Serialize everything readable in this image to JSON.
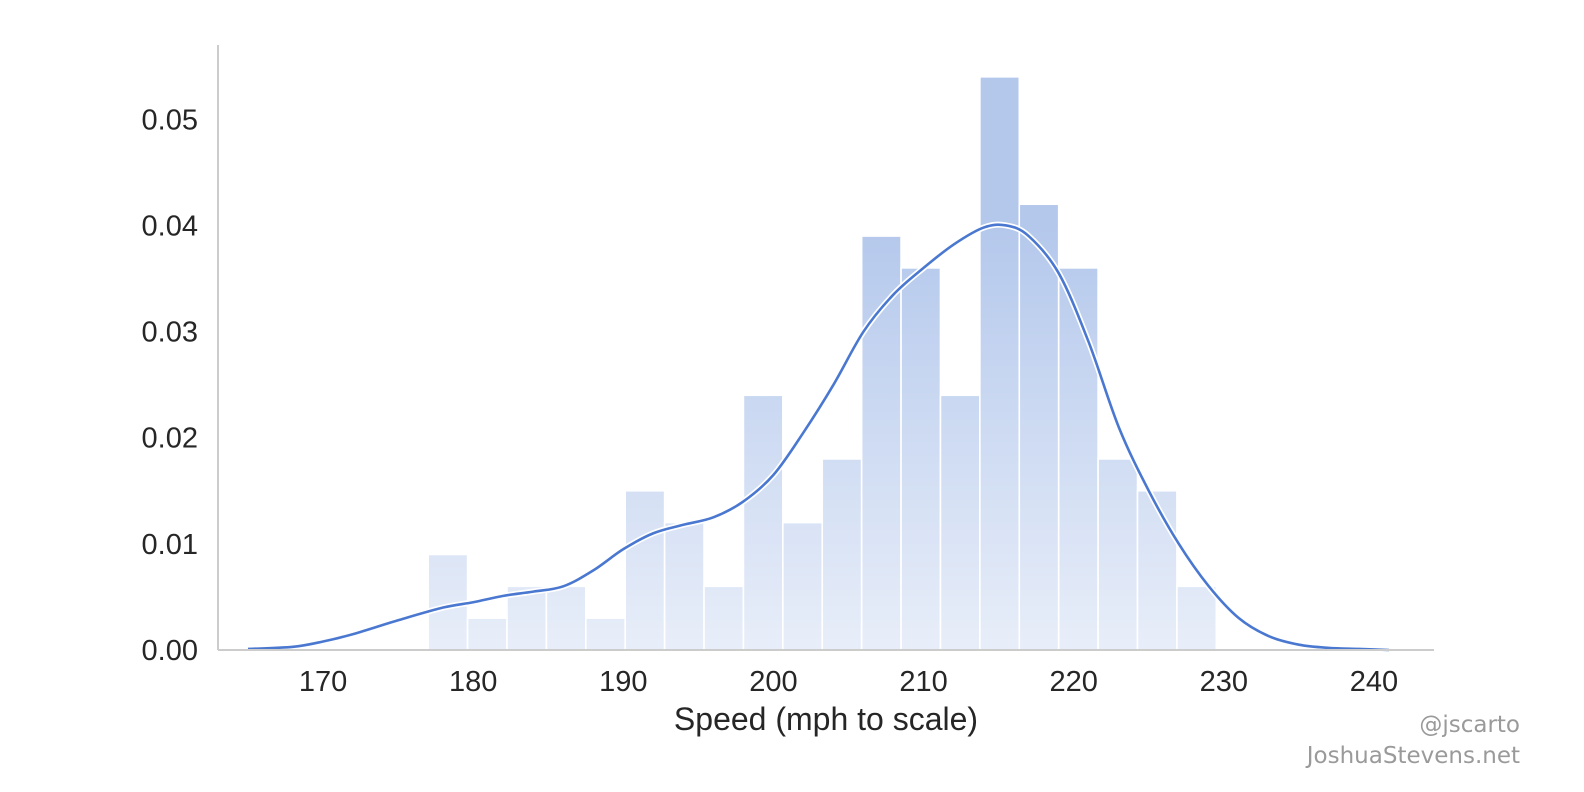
{
  "chart_data": {
    "type": "bar",
    "title": "",
    "xlabel": "Speed (mph to scale)",
    "ylabel": "",
    "xlim": [
      163,
      244
    ],
    "ylim": [
      0,
      0.057
    ],
    "xticks": [
      170,
      180,
      190,
      200,
      210,
      220,
      230,
      240
    ],
    "yticks": [
      0.0,
      0.01,
      0.02,
      0.03,
      0.04,
      0.05
    ],
    "ytick_labels": [
      "0.00",
      "0.01",
      "0.02",
      "0.03",
      "0.04",
      "0.05"
    ],
    "grid": false,
    "bins": {
      "start": 177,
      "width": 2.625,
      "values": [
        0.009,
        0.003,
        0.006,
        0.006,
        0.003,
        0.015,
        0.012,
        0.006,
        0.024,
        0.012,
        0.018,
        0.039,
        0.036,
        0.024,
        0.054,
        0.042,
        0.036,
        0.018,
        0.015,
        0.006
      ]
    },
    "kde": {
      "x": [
        165,
        168,
        170,
        172,
        175,
        178,
        180,
        182,
        184,
        186,
        188,
        190,
        192,
        194,
        196,
        198,
        200,
        202,
        204,
        206,
        208,
        210,
        212,
        214,
        215.5,
        217,
        219,
        221,
        223,
        225,
        227,
        229,
        231,
        233,
        235,
        237,
        239,
        241
      ],
      "y": [
        0.0001,
        0.0003,
        0.0008,
        0.0015,
        0.0028,
        0.004,
        0.0045,
        0.0051,
        0.0055,
        0.006,
        0.0075,
        0.0095,
        0.011,
        0.0118,
        0.0125,
        0.014,
        0.0165,
        0.0205,
        0.025,
        0.03,
        0.0335,
        0.036,
        0.0382,
        0.0398,
        0.04,
        0.039,
        0.0355,
        0.029,
        0.021,
        0.015,
        0.01,
        0.006,
        0.003,
        0.0013,
        0.0005,
        0.0002,
        0.0001,
        0.0
      ]
    },
    "colors": {
      "bar_top": "#b4c8ec",
      "bar_bottom": "#e8eef9",
      "line": "#4a78d0",
      "axis": "#cccccc"
    }
  },
  "credits": {
    "handle": "@jscarto",
    "site": "JoshuaStevens.net"
  }
}
